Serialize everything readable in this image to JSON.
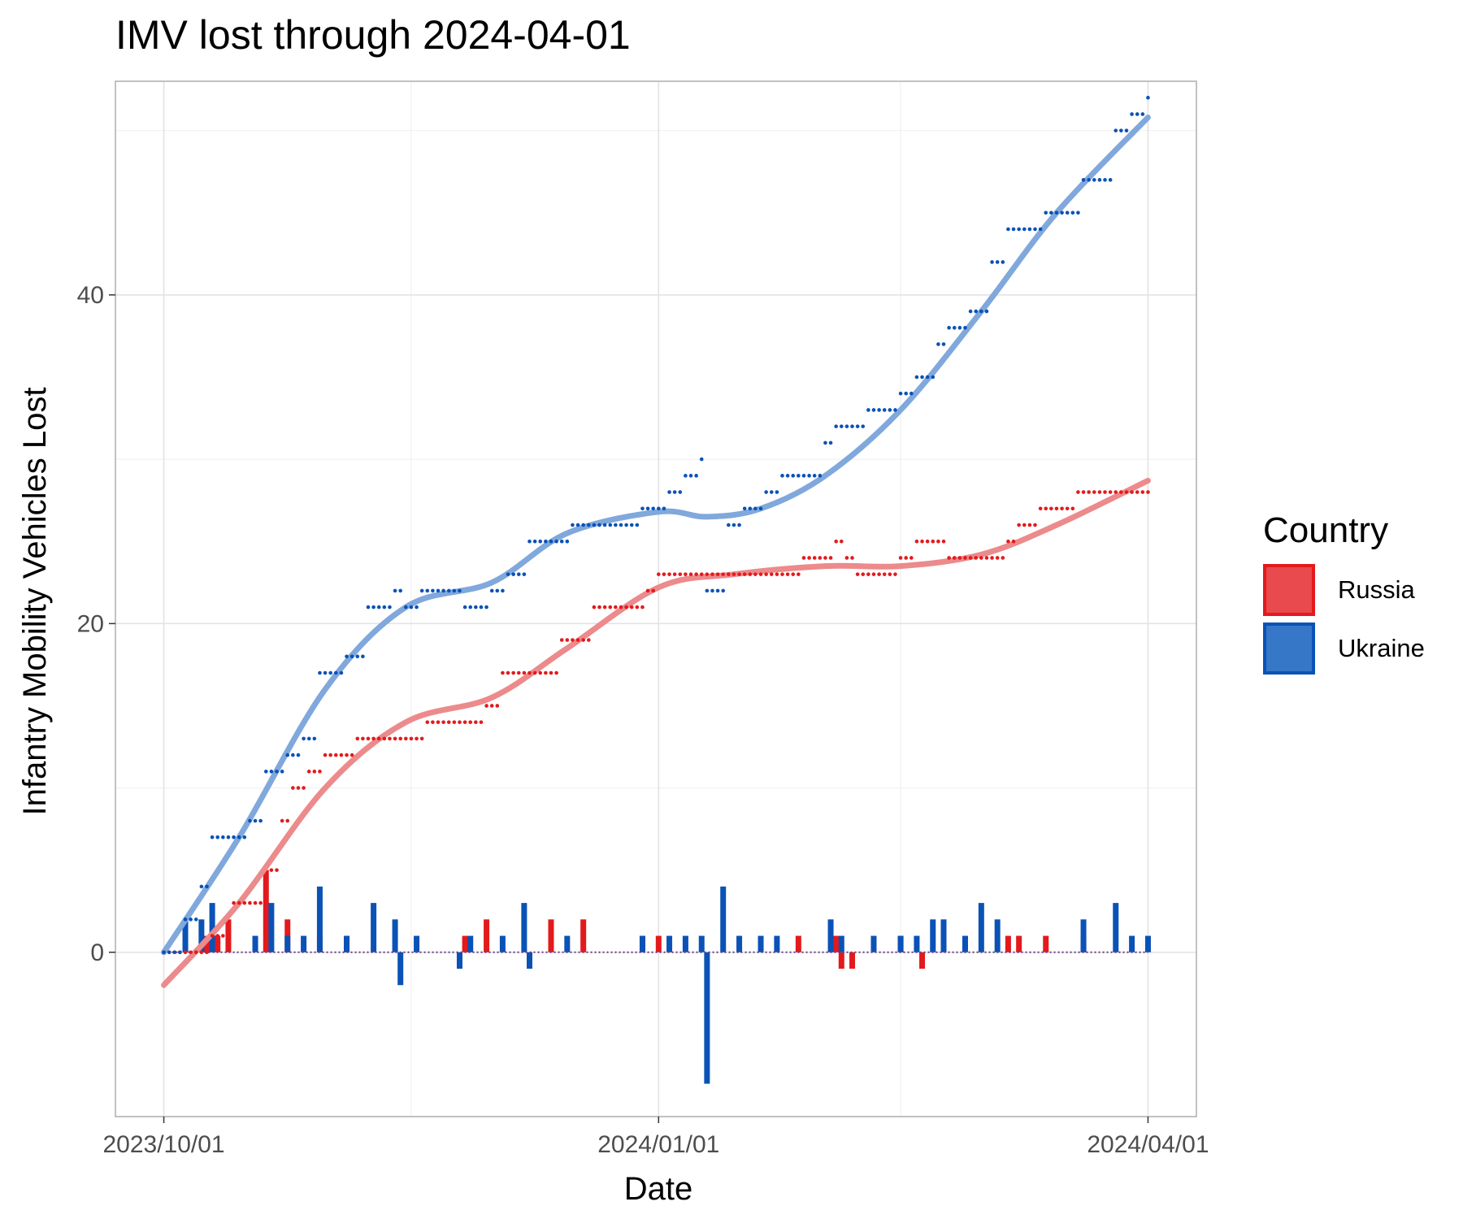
{
  "chart_data": {
    "type": "line",
    "title": "IMV lost through 2024-04-01",
    "xlabel": "Date",
    "ylabel": "Infantry Mobility Vehicles Lost",
    "x_range": [
      "2023-09-22",
      "2024-04-10"
    ],
    "x_ticks": [
      "2023-10-01",
      "2024-01-01",
      "2024-04-01"
    ],
    "x_tick_labels": [
      "2023/10/01",
      "2024/01/01",
      "2024/04/01"
    ],
    "ylim": [
      -10,
      53
    ],
    "y_ticks": [
      0,
      20,
      40
    ],
    "y_tick_labels": [
      "0",
      "20",
      "40"
    ],
    "grid": true,
    "legend": {
      "title": "Country",
      "position": "right"
    },
    "series": [
      {
        "name": "Russia",
        "color": "#e31a1c",
        "trend_color": "#ec8a8c",
        "cumulative": [
          [
            "2023-10-01",
            0
          ],
          [
            "2023-10-05",
            0
          ],
          [
            "2023-10-10",
            1
          ],
          [
            "2023-10-14",
            3
          ],
          [
            "2023-10-21",
            5
          ],
          [
            "2023-10-23",
            8
          ],
          [
            "2023-10-25",
            10
          ],
          [
            "2023-10-28",
            11
          ],
          [
            "2023-10-31",
            12
          ],
          [
            "2023-11-06",
            13
          ],
          [
            "2023-11-16",
            13
          ],
          [
            "2023-11-19",
            14
          ],
          [
            "2023-11-30",
            15
          ],
          [
            "2023-12-03",
            17
          ],
          [
            "2023-12-12",
            17
          ],
          [
            "2023-12-14",
            19
          ],
          [
            "2023-12-20",
            21
          ],
          [
            "2023-12-30",
            22
          ],
          [
            "2024-01-01",
            23
          ],
          [
            "2024-01-27",
            23
          ],
          [
            "2024-01-28",
            24
          ],
          [
            "2024-02-03",
            25
          ],
          [
            "2024-02-05",
            24
          ],
          [
            "2024-02-07",
            23
          ],
          [
            "2024-02-15",
            24
          ],
          [
            "2024-02-18",
            25
          ],
          [
            "2024-02-24",
            24
          ],
          [
            "2024-03-06",
            25
          ],
          [
            "2024-03-08",
            26
          ],
          [
            "2024-03-12",
            27
          ],
          [
            "2024-03-19",
            28
          ],
          [
            "2024-04-01",
            28
          ]
        ],
        "trend": [
          [
            "2023-10-01",
            -2
          ],
          [
            "2023-10-15",
            3
          ],
          [
            "2023-10-31",
            10
          ],
          [
            "2023-11-15",
            14
          ],
          [
            "2023-12-01",
            15.5
          ],
          [
            "2023-12-15",
            18.5
          ],
          [
            "2024-01-01",
            22.2
          ],
          [
            "2024-01-15",
            23
          ],
          [
            "2024-02-01",
            23.5
          ],
          [
            "2024-02-15",
            23.5
          ],
          [
            "2024-03-01",
            24.2
          ],
          [
            "2024-03-15",
            26
          ],
          [
            "2024-04-01",
            28.7
          ]
        ],
        "daily": [
          [
            "2023-10-09",
            1
          ],
          [
            "2023-10-11",
            1
          ],
          [
            "2023-10-13",
            2
          ],
          [
            "2023-10-20",
            5
          ],
          [
            "2023-10-24",
            2
          ],
          [
            "2023-10-30",
            1
          ],
          [
            "2023-11-04",
            1
          ],
          [
            "2023-11-26",
            1
          ],
          [
            "2023-11-30",
            2
          ],
          [
            "2023-12-12",
            2
          ],
          [
            "2023-12-18",
            2
          ],
          [
            "2023-12-29",
            1
          ],
          [
            "2024-01-01",
            1
          ],
          [
            "2024-01-27",
            1
          ],
          [
            "2024-02-03",
            1
          ],
          [
            "2024-02-04",
            -1
          ],
          [
            "2024-02-06",
            -1
          ],
          [
            "2024-02-15",
            1
          ],
          [
            "2024-02-19",
            -1
          ],
          [
            "2024-03-06",
            1
          ],
          [
            "2024-03-08",
            1
          ],
          [
            "2024-03-13",
            1
          ],
          [
            "2024-03-20",
            1
          ]
        ]
      },
      {
        "name": "Ukraine",
        "color": "#0a52b6",
        "trend_color": "#80a8dc",
        "cumulative": [
          [
            "2023-10-01",
            0
          ],
          [
            "2023-10-05",
            2
          ],
          [
            "2023-10-08",
            4
          ],
          [
            "2023-10-10",
            7
          ],
          [
            "2023-10-17",
            8
          ],
          [
            "2023-10-20",
            11
          ],
          [
            "2023-10-24",
            12
          ],
          [
            "2023-10-27",
            13
          ],
          [
            "2023-10-30",
            17
          ],
          [
            "2023-11-04",
            18
          ],
          [
            "2023-11-08",
            21
          ],
          [
            "2023-11-13",
            22
          ],
          [
            "2023-11-15",
            21
          ],
          [
            "2023-11-18",
            22
          ],
          [
            "2023-11-26",
            21
          ],
          [
            "2023-12-01",
            22
          ],
          [
            "2023-12-04",
            23
          ],
          [
            "2023-12-08",
            25
          ],
          [
            "2023-12-16",
            26
          ],
          [
            "2023-12-29",
            27
          ],
          [
            "2024-01-03",
            28
          ],
          [
            "2024-01-06",
            29
          ],
          [
            "2024-01-09",
            30
          ],
          [
            "2024-01-10",
            22
          ],
          [
            "2024-01-14",
            26
          ],
          [
            "2024-01-17",
            27
          ],
          [
            "2024-01-21",
            28
          ],
          [
            "2024-01-24",
            29
          ],
          [
            "2024-02-01",
            31
          ],
          [
            "2024-02-03",
            32
          ],
          [
            "2024-02-09",
            33
          ],
          [
            "2024-02-15",
            34
          ],
          [
            "2024-02-18",
            35
          ],
          [
            "2024-02-22",
            37
          ],
          [
            "2024-02-24",
            38
          ],
          [
            "2024-02-28",
            39
          ],
          [
            "2024-03-03",
            42
          ],
          [
            "2024-03-06",
            44
          ],
          [
            "2024-03-13",
            45
          ],
          [
            "2024-03-20",
            47
          ],
          [
            "2024-03-26",
            50
          ],
          [
            "2024-03-29",
            51
          ],
          [
            "2024-04-01",
            52
          ]
        ],
        "trend": [
          [
            "2023-10-01",
            0
          ],
          [
            "2023-10-15",
            7
          ],
          [
            "2023-10-31",
            16
          ],
          [
            "2023-11-15",
            21
          ],
          [
            "2023-12-01",
            22.5
          ],
          [
            "2023-12-15",
            25.5
          ],
          [
            "2024-01-01",
            26.8
          ],
          [
            "2024-01-10",
            26.5
          ],
          [
            "2024-01-20",
            27
          ],
          [
            "2024-02-01",
            29
          ],
          [
            "2024-02-15",
            33
          ],
          [
            "2024-03-01",
            39
          ],
          [
            "2024-03-15",
            45
          ],
          [
            "2024-04-01",
            50.8
          ]
        ],
        "daily": [
          [
            "2023-10-05",
            2
          ],
          [
            "2023-10-08",
            2
          ],
          [
            "2023-10-10",
            3
          ],
          [
            "2023-10-18",
            1
          ],
          [
            "2023-10-21",
            3
          ],
          [
            "2023-10-24",
            1
          ],
          [
            "2023-10-27",
            1
          ],
          [
            "2023-10-30",
            4
          ],
          [
            "2023-11-04",
            1
          ],
          [
            "2023-11-09",
            3
          ],
          [
            "2023-11-13",
            2
          ],
          [
            "2023-11-14",
            -2
          ],
          [
            "2023-11-17",
            1
          ],
          [
            "2023-11-25",
            -1
          ],
          [
            "2023-11-27",
            1
          ],
          [
            "2023-12-03",
            1
          ],
          [
            "2023-12-07",
            3
          ],
          [
            "2023-12-08",
            -1
          ],
          [
            "2023-12-15",
            1
          ],
          [
            "2023-12-29",
            1
          ],
          [
            "2024-01-03",
            1
          ],
          [
            "2024-01-06",
            1
          ],
          [
            "2024-01-09",
            1
          ],
          [
            "2024-01-10",
            -8
          ],
          [
            "2024-01-13",
            4
          ],
          [
            "2024-01-16",
            1
          ],
          [
            "2024-01-20",
            1
          ],
          [
            "2024-01-23",
            1
          ],
          [
            "2024-02-02",
            2
          ],
          [
            "2024-02-04",
            1
          ],
          [
            "2024-02-10",
            1
          ],
          [
            "2024-02-15",
            1
          ],
          [
            "2024-02-18",
            1
          ],
          [
            "2024-02-21",
            2
          ],
          [
            "2024-02-23",
            2
          ],
          [
            "2024-02-27",
            1
          ],
          [
            "2024-03-01",
            3
          ],
          [
            "2024-03-04",
            2
          ],
          [
            "2024-03-20",
            2
          ],
          [
            "2024-03-26",
            3
          ],
          [
            "2024-03-29",
            1
          ],
          [
            "2024-04-01",
            1
          ]
        ]
      }
    ]
  }
}
